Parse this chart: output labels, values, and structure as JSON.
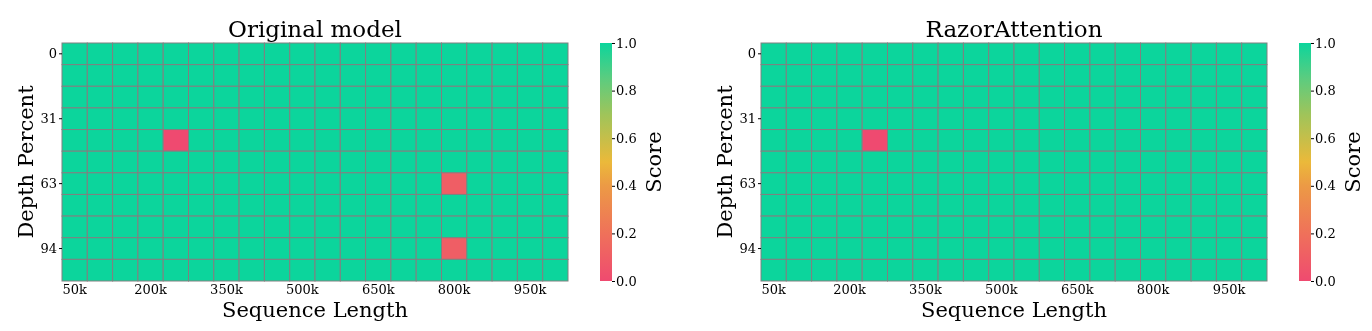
{
  "chart_data": [
    {
      "type": "heatmap",
      "title": "Original model",
      "xlabel": "Sequence Length",
      "ylabel": "Depth Percent",
      "clabel": "Score",
      "clim": [
        0,
        1
      ],
      "cticks": [
        {
          "value": 0,
          "label": "0.0"
        },
        {
          "value": 0.2,
          "label": "0.2"
        },
        {
          "value": 0.4,
          "label": "0.4"
        },
        {
          "value": 0.6,
          "label": "0.6"
        },
        {
          "value": 0.8,
          "label": "0.8"
        },
        {
          "value": 1,
          "label": "1.0"
        }
      ],
      "categories": [
        "50k",
        null,
        null,
        "200k",
        null,
        null,
        "350k",
        null,
        null,
        "500k",
        null,
        null,
        "650k",
        null,
        null,
        "800k",
        null,
        null,
        "950k",
        null
      ],
      "y_categories": [
        "0",
        null,
        null,
        "31",
        null,
        null,
        "63",
        null,
        null,
        "94",
        null
      ],
      "cells": [
        [
          1,
          1,
          1,
          1,
          1,
          1,
          1,
          1,
          1,
          1,
          1,
          1,
          1,
          1,
          1,
          1,
          1,
          1,
          1,
          1
        ],
        [
          1,
          1,
          1,
          1,
          1,
          1,
          1,
          1,
          1,
          1,
          1,
          1,
          1,
          1,
          1,
          1,
          1,
          1,
          1,
          1
        ],
        [
          1,
          1,
          1,
          1,
          1,
          1,
          1,
          1,
          1,
          1,
          1,
          1,
          1,
          1,
          1,
          1,
          1,
          1,
          1,
          1
        ],
        [
          1,
          1,
          1,
          1,
          1,
          1,
          1,
          1,
          1,
          1,
          1,
          1,
          1,
          1,
          1,
          1,
          1,
          1,
          1,
          1
        ],
        [
          1,
          1,
          1,
          1,
          0,
          1,
          1,
          1,
          1,
          1,
          1,
          1,
          1,
          1,
          1,
          1,
          1,
          1,
          1,
          1
        ],
        [
          1,
          1,
          1,
          1,
          1,
          1,
          1,
          1,
          1,
          1,
          1,
          1,
          1,
          1,
          1,
          1,
          1,
          1,
          1,
          1
        ],
        [
          1,
          1,
          1,
          1,
          1,
          1,
          1,
          1,
          1,
          1,
          1,
          1,
          1,
          1,
          1,
          0.1,
          1,
          1,
          1,
          1
        ],
        [
          1,
          1,
          1,
          1,
          1,
          1,
          1,
          1,
          1,
          1,
          1,
          1,
          1,
          1,
          1,
          1,
          1,
          1,
          1,
          1
        ],
        [
          1,
          1,
          1,
          1,
          1,
          1,
          1,
          1,
          1,
          1,
          1,
          1,
          1,
          1,
          1,
          1,
          1,
          1,
          1,
          1
        ],
        [
          1,
          1,
          1,
          1,
          1,
          1,
          1,
          1,
          1,
          1,
          1,
          1,
          1,
          1,
          1,
          0.1,
          1,
          1,
          1,
          1
        ],
        [
          1,
          1,
          1,
          1,
          1,
          1,
          1,
          1,
          1,
          1,
          1,
          1,
          1,
          1,
          1,
          1,
          1,
          1,
          1,
          1
        ]
      ]
    },
    {
      "type": "heatmap",
      "title": "RazorAttention",
      "xlabel": "Sequence Length",
      "ylabel": "Depth Percent",
      "clabel": "Score",
      "clim": [
        0,
        1
      ],
      "cticks": [
        {
          "value": 0,
          "label": "0.0"
        },
        {
          "value": 0.2,
          "label": "0.2"
        },
        {
          "value": 0.4,
          "label": "0.4"
        },
        {
          "value": 0.6,
          "label": "0.6"
        },
        {
          "value": 0.8,
          "label": "0.8"
        },
        {
          "value": 1,
          "label": "1.0"
        }
      ],
      "categories": [
        "50k",
        null,
        null,
        "200k",
        null,
        null,
        "350k",
        null,
        null,
        "500k",
        null,
        null,
        "650k",
        null,
        null,
        "800k",
        null,
        null,
        "950k",
        null
      ],
      "y_categories": [
        "0",
        null,
        null,
        "31",
        null,
        null,
        "63",
        null,
        null,
        "94",
        null
      ],
      "cells": [
        [
          1,
          1,
          1,
          1,
          1,
          1,
          1,
          1,
          1,
          1,
          1,
          1,
          1,
          1,
          1,
          1,
          1,
          1,
          1,
          1
        ],
        [
          1,
          1,
          1,
          1,
          1,
          1,
          1,
          1,
          1,
          1,
          1,
          1,
          1,
          1,
          1,
          1,
          1,
          1,
          1,
          1
        ],
        [
          1,
          1,
          1,
          1,
          1,
          1,
          1,
          1,
          1,
          1,
          1,
          1,
          1,
          1,
          1,
          1,
          1,
          1,
          1,
          1
        ],
        [
          1,
          1,
          1,
          1,
          1,
          1,
          1,
          1,
          1,
          1,
          1,
          1,
          1,
          1,
          1,
          1,
          1,
          1,
          1,
          1
        ],
        [
          1,
          1,
          1,
          1,
          0,
          1,
          1,
          1,
          1,
          1,
          1,
          1,
          1,
          1,
          1,
          1,
          1,
          1,
          1,
          1
        ],
        [
          1,
          1,
          1,
          1,
          1,
          1,
          1,
          1,
          1,
          1,
          1,
          1,
          1,
          1,
          1,
          1,
          1,
          1,
          1,
          1
        ],
        [
          1,
          1,
          1,
          1,
          1,
          1,
          1,
          1,
          1,
          1,
          1,
          1,
          1,
          1,
          1,
          1,
          1,
          1,
          1,
          1
        ],
        [
          1,
          1,
          1,
          1,
          1,
          1,
          1,
          1,
          1,
          1,
          1,
          1,
          1,
          1,
          1,
          1,
          1,
          1,
          1,
          1
        ],
        [
          1,
          1,
          1,
          1,
          1,
          1,
          1,
          1,
          1,
          1,
          1,
          1,
          1,
          1,
          1,
          1,
          1,
          1,
          1,
          1
        ],
        [
          1,
          1,
          1,
          1,
          1,
          1,
          1,
          1,
          1,
          1,
          1,
          1,
          1,
          1,
          1,
          1,
          1,
          1,
          1,
          1
        ],
        [
          1,
          1,
          1,
          1,
          1,
          1,
          1,
          1,
          1,
          1,
          1,
          1,
          1,
          1,
          1,
          1,
          1,
          1,
          1,
          1
        ]
      ]
    }
  ]
}
